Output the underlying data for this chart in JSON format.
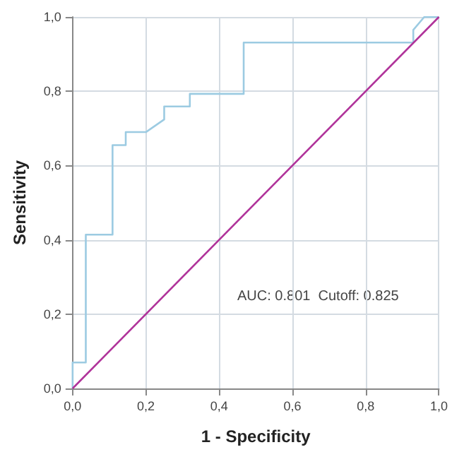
{
  "chart_data": {
    "type": "line",
    "xlabel": "1 - Specificity",
    "ylabel": "Sensitivity",
    "series": [
      {
        "color": "#9ccbe2",
        "x": [
          0,
          0,
          0.036,
          0.036,
          0.109,
          0.109,
          0.145,
          0.145,
          0.2,
          0.25,
          0.25,
          0.32,
          0.32,
          0.467,
          0.467,
          0.93,
          0.93,
          0.96,
          1
        ],
        "values": [
          0,
          0.07,
          0.07,
          0.414,
          0.414,
          0.655,
          0.655,
          0.69,
          0.69,
          0.724,
          0.759,
          0.759,
          0.793,
          0.793,
          0.931,
          0.931,
          0.965,
          1,
          1
        ]
      },
      {
        "color": "#b0339a",
        "x": [
          0,
          1
        ],
        "values": [
          0,
          1
        ]
      }
    ],
    "xlim": [
      0,
      1
    ],
    "ylim": [
      0,
      1
    ],
    "xticks": [
      {
        "value": 0,
        "label": "0,0"
      },
      {
        "value": 0.2,
        "label": "0,2"
      },
      {
        "value": 0.4,
        "label": "0,4"
      },
      {
        "value": 0.6,
        "label": "0,6"
      },
      {
        "value": 0.8,
        "label": "0,8"
      },
      {
        "value": 1,
        "label": "1,0"
      }
    ],
    "yticks": [
      {
        "value": 0,
        "label": "0,0"
      },
      {
        "value": 0.2,
        "label": "0,2"
      },
      {
        "value": 0.4,
        "label": "0,4"
      },
      {
        "value": 0.6,
        "label": "0,6"
      },
      {
        "value": 0.8,
        "label": "0,8"
      },
      {
        "value": 1,
        "label": "1,0"
      }
    ],
    "grid": true,
    "marker": "none",
    "line_style": "solid",
    "annotations": [
      "AUC: 0.801  Cutoff: 0.825"
    ]
  }
}
